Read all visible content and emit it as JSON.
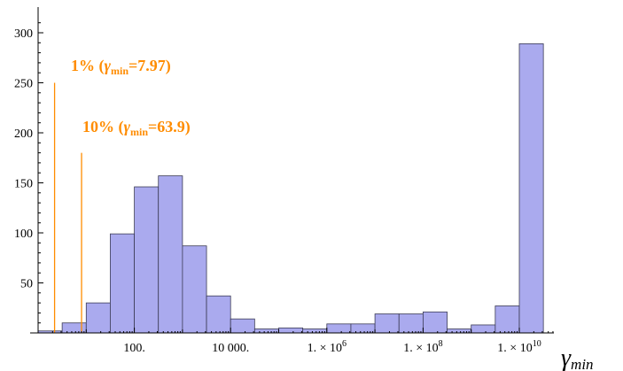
{
  "chart_data": {
    "type": "bar",
    "title": "",
    "xlabel": "γ",
    "xlabel_sub": "min",
    "ylabel": "",
    "x_scale": "log10",
    "ylim": [
      0,
      320
    ],
    "y_ticks": [
      50,
      100,
      150,
      200,
      250,
      300
    ],
    "x_ticks": [
      {
        "value": 100,
        "label": "100."
      },
      {
        "value": 10000,
        "label": "10 000."
      },
      {
        "value": 1000000,
        "label": "1. × 10",
        "exp": "6"
      },
      {
        "value": 100000000,
        "label": "1. × 10",
        "exp": "8"
      },
      {
        "value": 10000000000,
        "label": "1. × 10",
        "exp": "10"
      }
    ],
    "grid": false,
    "bar_color": "#aaaaee",
    "bars": [
      {
        "x0": 1,
        "x1": 3.16,
        "value": 2
      },
      {
        "x0": 3.16,
        "x1": 10,
        "value": 10
      },
      {
        "x0": 10,
        "x1": 31.6,
        "value": 30
      },
      {
        "x0": 31.6,
        "x1": 100,
        "value": 99
      },
      {
        "x0": 100,
        "x1": 316,
        "value": 146
      },
      {
        "x0": 316,
        "x1": 1000,
        "value": 157
      },
      {
        "x0": 1000,
        "x1": 3162,
        "value": 87
      },
      {
        "x0": 3162,
        "x1": 10000,
        "value": 37
      },
      {
        "x0": 10000,
        "x1": 31623,
        "value": 14
      },
      {
        "x0": 31623,
        "x1": 100000,
        "value": 4
      },
      {
        "x0": 100000,
        "x1": 316228,
        "value": 5
      },
      {
        "x0": 316228,
        "x1": 1000000,
        "value": 4
      },
      {
        "x0": 1000000,
        "x1": 3162278,
        "value": 9
      },
      {
        "x0": 3162278,
        "x1": 10000000,
        "value": 9
      },
      {
        "x0": 10000000,
        "x1": 31622777,
        "value": 19
      },
      {
        "x0": 31622777,
        "x1": 100000000,
        "value": 19
      },
      {
        "x0": 100000000,
        "x1": 316227766,
        "value": 21
      },
      {
        "x0": 316227766,
        "x1": 1000000000,
        "value": 4
      },
      {
        "x0": 1000000000,
        "x1": 3162277660,
        "value": 8
      },
      {
        "x0": 3162277660,
        "x1": 10000000000,
        "value": 27
      },
      {
        "x0": 10000000000,
        "x1": 31622776602,
        "value": 289
      }
    ],
    "annotations": [
      {
        "pct": "1%",
        "symbol": "γ",
        "sub": "min",
        "eq": "=7.97",
        "x_value": 2.2,
        "line_top": 250,
        "color": "#ff8c00"
      },
      {
        "pct": "10%",
        "symbol": "γ",
        "sub": "min",
        "eq": "=63.9",
        "x_value": 8,
        "line_top": 180,
        "color": "#ff8c00"
      }
    ]
  }
}
